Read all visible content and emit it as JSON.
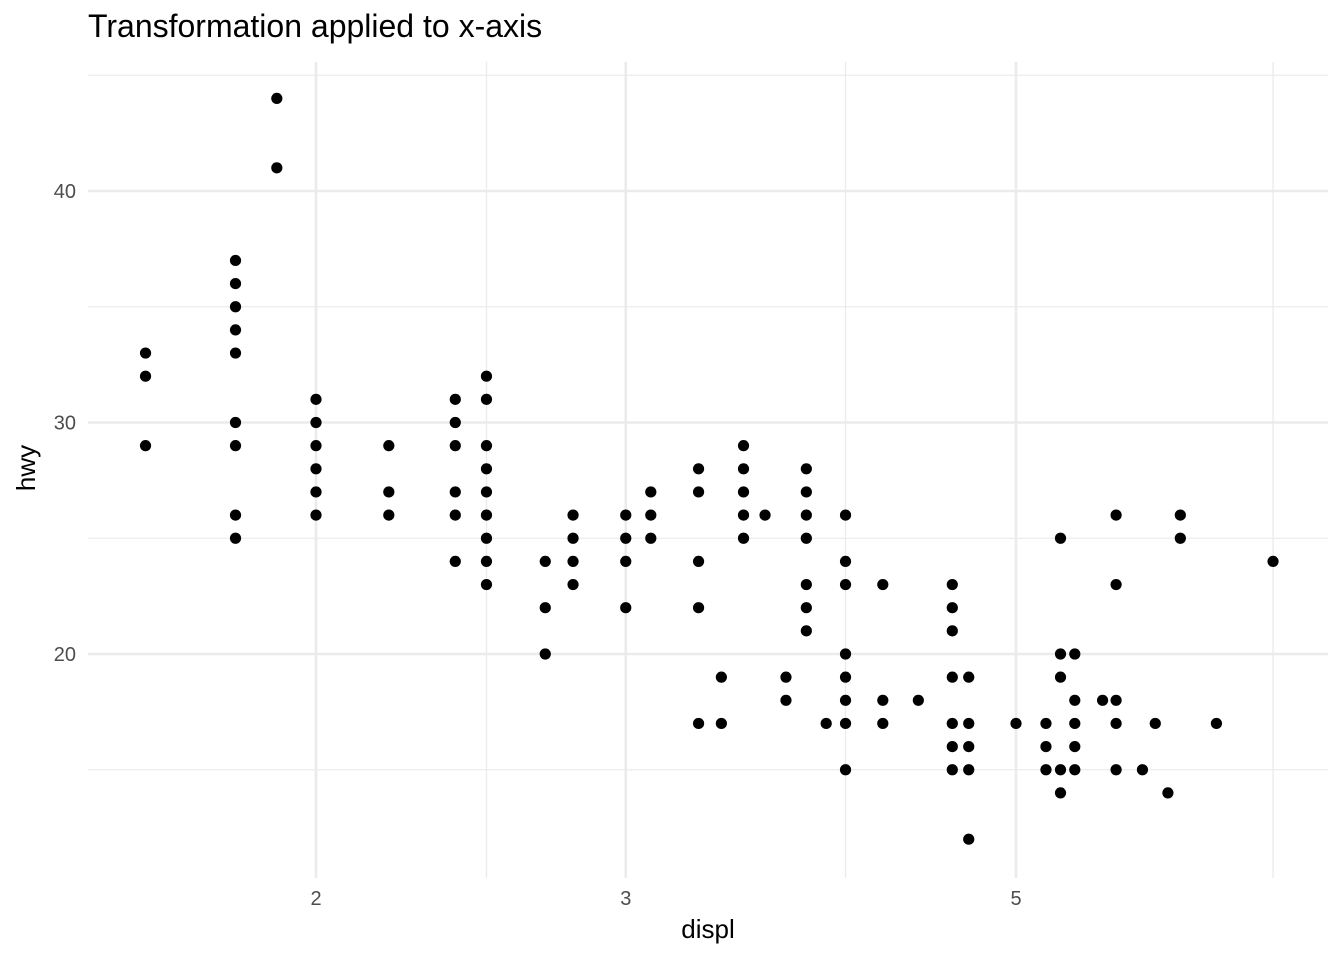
{
  "chart_data": {
    "type": "scatter",
    "title": "Transformation applied to x-axis",
    "xlabel": "displ",
    "ylabel": "hwy",
    "x_scale": "log",
    "xlim": [
      1.5,
      7.3
    ],
    "ylim": [
      10.7,
      45.4
    ],
    "x_ticks": [
      2,
      3,
      5
    ],
    "x_minor_ticks": [
      2.5,
      4,
      7
    ],
    "y_ticks": [
      20,
      30,
      40
    ],
    "y_minor_ticks": [
      15,
      25,
      35,
      45
    ],
    "grid": true,
    "point_color": "#000000",
    "grid_color": "#ebebeb",
    "points": [
      [
        1.6,
        33
      ],
      [
        1.6,
        32
      ],
      [
        1.6,
        29
      ],
      [
        1.8,
        37
      ],
      [
        1.8,
        36
      ],
      [
        1.8,
        35
      ],
      [
        1.8,
        34
      ],
      [
        1.8,
        33
      ],
      [
        1.8,
        30
      ],
      [
        1.8,
        29
      ],
      [
        1.8,
        26
      ],
      [
        1.8,
        25
      ],
      [
        1.9,
        44
      ],
      [
        1.9,
        41
      ],
      [
        2.0,
        31
      ],
      [
        2.0,
        30
      ],
      [
        2.0,
        29
      ],
      [
        2.0,
        28
      ],
      [
        2.0,
        27
      ],
      [
        2.0,
        26
      ],
      [
        2.2,
        29
      ],
      [
        2.2,
        27
      ],
      [
        2.2,
        26
      ],
      [
        2.4,
        31
      ],
      [
        2.4,
        30
      ],
      [
        2.4,
        29
      ],
      [
        2.4,
        27
      ],
      [
        2.4,
        26
      ],
      [
        2.4,
        24
      ],
      [
        2.5,
        32
      ],
      [
        2.5,
        31
      ],
      [
        2.5,
        29
      ],
      [
        2.5,
        28
      ],
      [
        2.5,
        27
      ],
      [
        2.5,
        26
      ],
      [
        2.5,
        25
      ],
      [
        2.5,
        24
      ],
      [
        2.5,
        23
      ],
      [
        2.7,
        24
      ],
      [
        2.7,
        22
      ],
      [
        2.7,
        20
      ],
      [
        2.8,
        26
      ],
      [
        2.8,
        25
      ],
      [
        2.8,
        24
      ],
      [
        2.8,
        23
      ],
      [
        3.0,
        26
      ],
      [
        3.0,
        25
      ],
      [
        3.0,
        24
      ],
      [
        3.0,
        22
      ],
      [
        3.1,
        27
      ],
      [
        3.1,
        26
      ],
      [
        3.1,
        25
      ],
      [
        3.3,
        28
      ],
      [
        3.3,
        27
      ],
      [
        3.3,
        24
      ],
      [
        3.3,
        22
      ],
      [
        3.3,
        17
      ],
      [
        3.4,
        19
      ],
      [
        3.4,
        17
      ],
      [
        3.5,
        29
      ],
      [
        3.5,
        28
      ],
      [
        3.5,
        27
      ],
      [
        3.5,
        26
      ],
      [
        3.5,
        25
      ],
      [
        3.6,
        26
      ],
      [
        3.7,
        19
      ],
      [
        3.7,
        18
      ],
      [
        3.8,
        28
      ],
      [
        3.8,
        27
      ],
      [
        3.8,
        26
      ],
      [
        3.8,
        25
      ],
      [
        3.8,
        23
      ],
      [
        3.8,
        22
      ],
      [
        3.8,
        21
      ],
      [
        3.9,
        17
      ],
      [
        4.0,
        26
      ],
      [
        4.0,
        24
      ],
      [
        4.0,
        23
      ],
      [
        4.0,
        20
      ],
      [
        4.0,
        19
      ],
      [
        4.0,
        18
      ],
      [
        4.0,
        17
      ],
      [
        4.0,
        15
      ],
      [
        4.2,
        23
      ],
      [
        4.2,
        18
      ],
      [
        4.2,
        17
      ],
      [
        4.4,
        18
      ],
      [
        4.6,
        23
      ],
      [
        4.6,
        22
      ],
      [
        4.6,
        21
      ],
      [
        4.6,
        19
      ],
      [
        4.6,
        17
      ],
      [
        4.6,
        16
      ],
      [
        4.6,
        15
      ],
      [
        4.7,
        19
      ],
      [
        4.7,
        17
      ],
      [
        4.7,
        16
      ],
      [
        4.7,
        15
      ],
      [
        4.7,
        12
      ],
      [
        5.0,
        17
      ],
      [
        5.2,
        17
      ],
      [
        5.2,
        16
      ],
      [
        5.2,
        15
      ],
      [
        5.3,
        25
      ],
      [
        5.3,
        20
      ],
      [
        5.3,
        19
      ],
      [
        5.3,
        15
      ],
      [
        5.3,
        14
      ],
      [
        5.4,
        20
      ],
      [
        5.4,
        18
      ],
      [
        5.4,
        17
      ],
      [
        5.4,
        16
      ],
      [
        5.4,
        15
      ],
      [
        5.6,
        18
      ],
      [
        5.7,
        26
      ],
      [
        5.7,
        23
      ],
      [
        5.7,
        18
      ],
      [
        5.7,
        17
      ],
      [
        5.7,
        15
      ],
      [
        5.9,
        15
      ],
      [
        6.0,
        17
      ],
      [
        6.1,
        14
      ],
      [
        6.2,
        26
      ],
      [
        6.2,
        25
      ],
      [
        6.5,
        17
      ],
      [
        7.0,
        24
      ]
    ]
  }
}
